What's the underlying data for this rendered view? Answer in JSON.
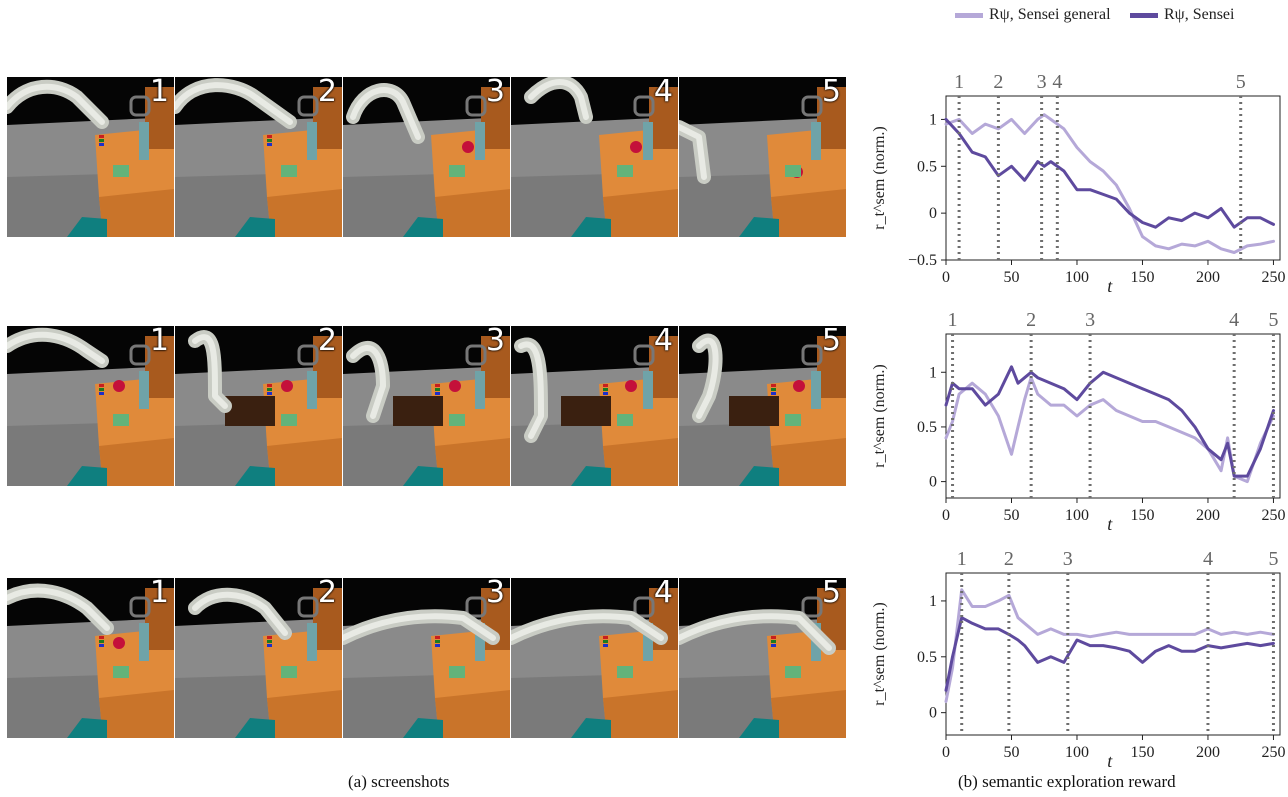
{
  "captions": {
    "screenshots": "(a) screenshots",
    "reward": "(b) semantic exploration reward"
  },
  "legend": {
    "general_label": "Rψ, Sensei general",
    "sensei_label": "Rψ, Sensei"
  },
  "colors": {
    "general": "#b5a8d8",
    "sensei": "#5e4a9e",
    "marker": "#6e6e6e",
    "frame_number": "#ffffff"
  },
  "screenshots": {
    "rows": [
      {
        "frames": [
          "1",
          "2",
          "3",
          "4",
          "5"
        ]
      },
      {
        "frames": [
          "1",
          "2",
          "3",
          "4",
          "5"
        ]
      },
      {
        "frames": [
          "1",
          "2",
          "3",
          "4",
          "5"
        ]
      }
    ]
  },
  "chart_data": [
    {
      "type": "line",
      "xlabel": "t",
      "ylabel": "r_t^sem (norm.)",
      "xlim": [
        0,
        255
      ],
      "ylim": [
        -0.5,
        1.25
      ],
      "xticks": [
        0,
        50,
        100,
        150,
        200,
        250
      ],
      "yticks": [
        -0.5,
        0,
        0.5,
        1
      ],
      "ytick_labels": [
        "−0.5",
        "0",
        "0.5",
        "1"
      ],
      "markers": [
        {
          "label": "1",
          "x": 10
        },
        {
          "label": "2",
          "x": 40
        },
        {
          "label": "3",
          "x": 73
        },
        {
          "label": "4",
          "x": 85
        },
        {
          "label": "5",
          "x": 225
        }
      ],
      "series": [
        {
          "name": "Rψ, Sensei general",
          "x": [
            0,
            10,
            20,
            30,
            40,
            50,
            60,
            70,
            75,
            80,
            90,
            100,
            110,
            120,
            130,
            140,
            150,
            160,
            170,
            180,
            190,
            200,
            210,
            220,
            230,
            240,
            250
          ],
          "y": [
            0.95,
            1.0,
            0.85,
            0.95,
            0.9,
            1.0,
            0.85,
            1.0,
            1.05,
            1.0,
            0.9,
            0.7,
            0.55,
            0.45,
            0.3,
            0.05,
            -0.25,
            -0.35,
            -0.38,
            -0.33,
            -0.35,
            -0.3,
            -0.38,
            -0.42,
            -0.35,
            -0.33,
            -0.3
          ]
        },
        {
          "name": "Rψ, Sensei",
          "x": [
            0,
            10,
            20,
            30,
            40,
            50,
            60,
            70,
            75,
            80,
            90,
            100,
            110,
            120,
            130,
            140,
            150,
            160,
            170,
            180,
            190,
            200,
            210,
            220,
            230,
            240,
            250
          ],
          "y": [
            1.0,
            0.85,
            0.65,
            0.6,
            0.4,
            0.5,
            0.35,
            0.55,
            0.5,
            0.55,
            0.45,
            0.25,
            0.25,
            0.2,
            0.15,
            0.0,
            -0.1,
            -0.15,
            -0.05,
            -0.08,
            0.0,
            -0.05,
            0.05,
            -0.15,
            -0.05,
            -0.05,
            -0.12
          ]
        }
      ]
    },
    {
      "type": "line",
      "xlabel": "t",
      "ylabel": "r_t^sem (norm.)",
      "xlim": [
        0,
        255
      ],
      "ylim": [
        -0.15,
        1.35
      ],
      "xticks": [
        0,
        50,
        100,
        150,
        200,
        250
      ],
      "yticks": [
        0,
        0.5,
        1
      ],
      "ytick_labels": [
        "0",
        "0.5",
        "1"
      ],
      "markers": [
        {
          "label": "1",
          "x": 5
        },
        {
          "label": "2",
          "x": 65
        },
        {
          "label": "3",
          "x": 110
        },
        {
          "label": "4",
          "x": 220
        },
        {
          "label": "5",
          "x": 250
        }
      ],
      "series": [
        {
          "name": "Rψ, Sensei general",
          "x": [
            0,
            5,
            10,
            20,
            30,
            40,
            50,
            55,
            60,
            65,
            70,
            80,
            90,
            100,
            110,
            120,
            130,
            140,
            150,
            160,
            170,
            180,
            190,
            200,
            210,
            215,
            220,
            230,
            240,
            250
          ],
          "y": [
            0.4,
            0.55,
            0.8,
            0.9,
            0.8,
            0.6,
            0.25,
            0.5,
            0.75,
            0.95,
            0.8,
            0.7,
            0.7,
            0.6,
            0.7,
            0.75,
            0.65,
            0.6,
            0.55,
            0.55,
            0.5,
            0.45,
            0.4,
            0.3,
            0.1,
            0.4,
            0.05,
            0.0,
            0.35,
            0.6
          ]
        },
        {
          "name": "Rψ, Sensei",
          "x": [
            0,
            5,
            10,
            20,
            30,
            40,
            50,
            55,
            60,
            65,
            70,
            80,
            90,
            100,
            110,
            120,
            130,
            140,
            150,
            160,
            170,
            180,
            190,
            200,
            210,
            215,
            220,
            230,
            240,
            250
          ],
          "y": [
            0.7,
            0.9,
            0.85,
            0.85,
            0.7,
            0.8,
            1.05,
            0.9,
            0.95,
            1.0,
            0.95,
            0.9,
            0.85,
            0.75,
            0.9,
            1.0,
            0.95,
            0.9,
            0.85,
            0.8,
            0.75,
            0.65,
            0.5,
            0.3,
            0.2,
            0.35,
            0.05,
            0.05,
            0.3,
            0.65
          ]
        }
      ]
    },
    {
      "type": "line",
      "xlabel": "t",
      "ylabel": "r_t^sem (norm.)",
      "xlim": [
        0,
        255
      ],
      "ylim": [
        -0.2,
        1.25
      ],
      "xticks": [
        0,
        50,
        100,
        150,
        200,
        250
      ],
      "yticks": [
        0,
        0.5,
        1
      ],
      "ytick_labels": [
        "0",
        "0.5",
        "1"
      ],
      "markers": [
        {
          "label": "1",
          "x": 12
        },
        {
          "label": "2",
          "x": 48
        },
        {
          "label": "3",
          "x": 93
        },
        {
          "label": "4",
          "x": 200
        },
        {
          "label": "5",
          "x": 250
        }
      ],
      "series": [
        {
          "name": "Rψ, Sensei general",
          "x": [
            0,
            5,
            12,
            20,
            30,
            40,
            48,
            55,
            60,
            70,
            80,
            90,
            100,
            110,
            120,
            130,
            140,
            150,
            160,
            170,
            180,
            190,
            200,
            210,
            220,
            230,
            240,
            250
          ],
          "y": [
            0.1,
            0.4,
            1.1,
            0.95,
            0.95,
            1.0,
            1.05,
            0.85,
            0.8,
            0.7,
            0.75,
            0.7,
            0.7,
            0.68,
            0.7,
            0.72,
            0.7,
            0.7,
            0.7,
            0.7,
            0.7,
            0.7,
            0.75,
            0.7,
            0.72,
            0.7,
            0.72,
            0.7
          ]
        },
        {
          "name": "Rψ, Sensei",
          "x": [
            0,
            5,
            12,
            20,
            30,
            40,
            48,
            55,
            60,
            70,
            80,
            90,
            100,
            110,
            120,
            130,
            140,
            150,
            160,
            170,
            180,
            190,
            200,
            210,
            220,
            230,
            240,
            250
          ],
          "y": [
            0.2,
            0.5,
            0.85,
            0.8,
            0.75,
            0.75,
            0.7,
            0.65,
            0.6,
            0.45,
            0.5,
            0.45,
            0.65,
            0.6,
            0.6,
            0.58,
            0.55,
            0.45,
            0.55,
            0.6,
            0.55,
            0.55,
            0.6,
            0.58,
            0.6,
            0.62,
            0.6,
            0.62
          ]
        }
      ]
    }
  ]
}
